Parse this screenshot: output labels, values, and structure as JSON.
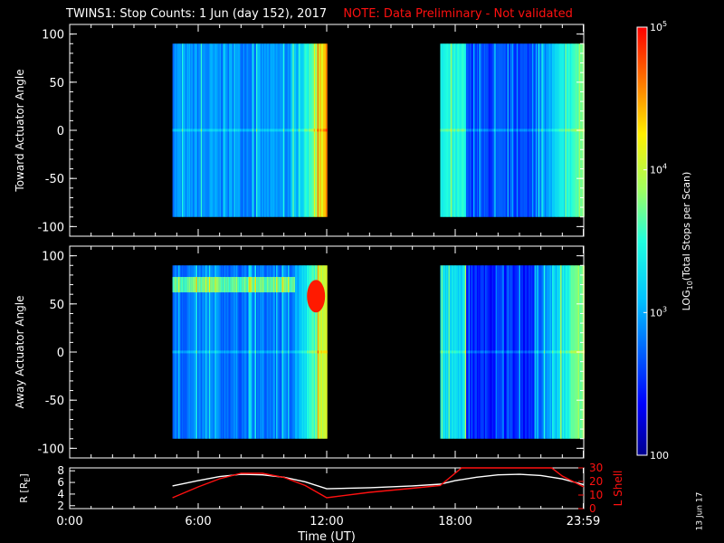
{
  "title": {
    "main": "TWINS1: Stop Counts:  1 Jun (day 152), 2017",
    "note": "NOTE: Data Preliminary - Not validated"
  },
  "colors": {
    "background": "#000000",
    "axes": "#ffffff",
    "note": "#ff1010",
    "lshell": "#ff1010",
    "radius": "#ffffff"
  },
  "chart_data": [
    {
      "type": "heatmap",
      "panel": "toward",
      "ylabel": "Toward Actuator Angle",
      "ylim": [
        -110,
        110
      ],
      "yticks": [
        100,
        50,
        0,
        -50,
        -100
      ],
      "xlim_hours": [
        0,
        24
      ],
      "coverage_hours": [
        [
          4.8,
          12.0
        ],
        [
          17.3,
          24.0
        ]
      ],
      "angle_range": [
        -90,
        90
      ],
      "color_scale_log10": [
        2,
        5
      ],
      "description_levels": [
        {
          "segment": "04:48-10:00",
          "log10": 2.9
        },
        {
          "segment": "10:00-12:00",
          "log10": 4.5
        },
        {
          "segment": "17:18-18:30",
          "log10": 3.4
        },
        {
          "segment": "18:30-21:30",
          "log10": 2.6
        },
        {
          "segment": "21:30-24:00",
          "log10": 3.8
        }
      ]
    },
    {
      "type": "heatmap",
      "panel": "away",
      "ylabel": "Away Actuator Angle",
      "ylim": [
        -110,
        110
      ],
      "yticks": [
        100,
        50,
        0,
        -50,
        -100
      ],
      "xlim_hours": [
        0,
        24
      ],
      "coverage_hours": [
        [
          4.8,
          12.0
        ],
        [
          17.3,
          24.0
        ]
      ],
      "angle_range": [
        -90,
        90
      ],
      "color_scale_log10": [
        2,
        5
      ],
      "description_levels": [
        {
          "segment": "04:48-10:00",
          "log10": 2.8
        },
        {
          "segment": "10:00-12:00",
          "log10": 4.3
        },
        {
          "segment": "17:18-18:30",
          "log10": 3.3
        },
        {
          "segment": "18:30-21:30",
          "log10": 2.5
        },
        {
          "segment": "21:30-24:00",
          "log10": 3.9
        }
      ]
    },
    {
      "type": "line",
      "panel": "orbit",
      "xlabel": "Time (UT)",
      "xticks": [
        "0:00",
        "6:00",
        "12:00",
        "18:00",
        "23:59"
      ],
      "xtick_hours": [
        0,
        6,
        12,
        18,
        23.98
      ],
      "ylabel": "R [R",
      "ylabel_sub": "E",
      "ylabel_end": "]",
      "ylim": [
        1.5,
        8.5
      ],
      "yticks": [
        2,
        4,
        6,
        8
      ],
      "y2label": "L Shell",
      "y2lim": [
        0,
        30
      ],
      "y2ticks": [
        30,
        20,
        10,
        0
      ],
      "series": [
        {
          "name": "R",
          "color": "#ffffff",
          "x": [
            4.8,
            6.0,
            7.0,
            8.0,
            9.0,
            10.0,
            11.0,
            12.0,
            14.0,
            16.0,
            17.3,
            18.0,
            19.0,
            20.0,
            21.0,
            22.0,
            23.0,
            24.0
          ],
          "y": [
            5.4,
            6.3,
            7.0,
            7.4,
            7.3,
            6.9,
            6.1,
            4.9,
            5.1,
            5.4,
            5.7,
            6.3,
            6.9,
            7.3,
            7.4,
            7.2,
            6.6,
            5.6
          ]
        },
        {
          "name": "L Shell",
          "color": "#ff1010",
          "axis": "right",
          "x": [
            4.8,
            6.0,
            7.0,
            8.0,
            9.0,
            10.0,
            11.0,
            12.0,
            14.0,
            16.0,
            17.3,
            18.3,
            18.6,
            21.0,
            22.5,
            23.0,
            24.0
          ],
          "y": [
            8.0,
            16.0,
            22.0,
            26.0,
            26.0,
            23.0,
            17.0,
            8.0,
            12.0,
            15.0,
            17.0,
            30.0,
            30.0,
            30.0,
            30.0,
            24.0,
            16.0
          ]
        }
      ]
    }
  ],
  "colorbar": {
    "label_prefix": "LOG",
    "label_sub": "10",
    "label_rest": "(Total Stops per Scan)",
    "ticks": [
      {
        "log10": 5,
        "base": "10",
        "exp": "5"
      },
      {
        "log10": 4,
        "base": "10",
        "exp": "4"
      },
      {
        "log10": 3,
        "base": "10",
        "exp": "3"
      },
      {
        "log10": 2,
        "base": "100",
        "exp": ""
      }
    ]
  },
  "stamp": "13 Jun 17"
}
